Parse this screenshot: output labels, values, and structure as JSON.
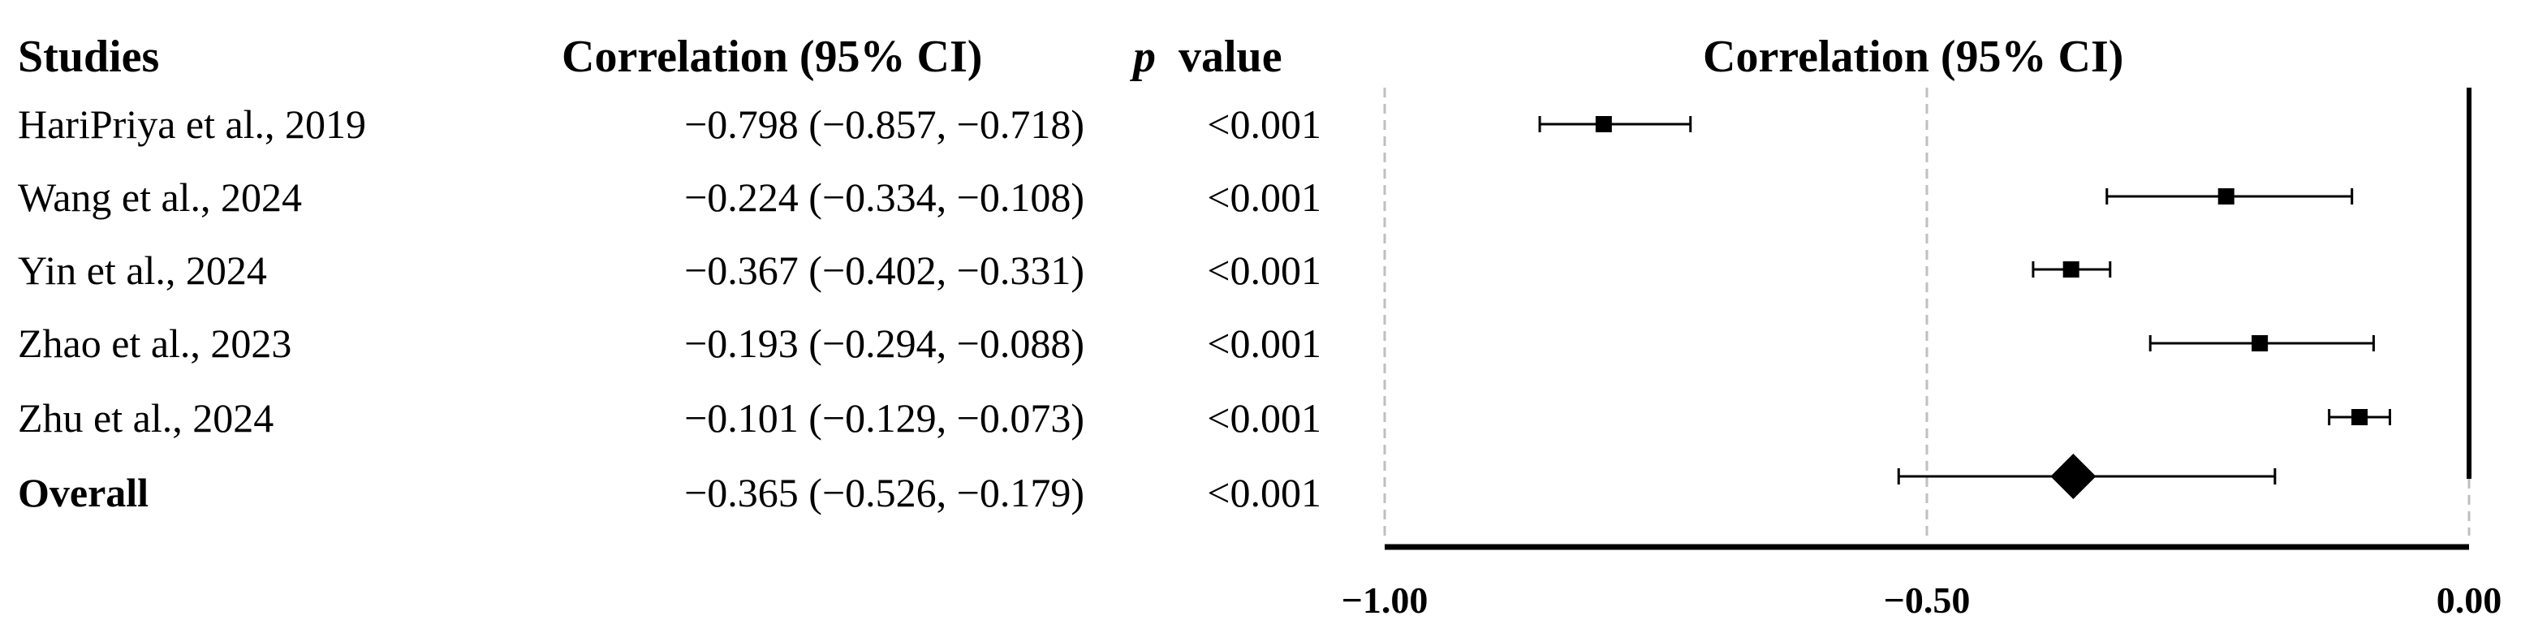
{
  "headers": {
    "studies": "Studies",
    "correlation": "Correlation (95% CI)",
    "p_italic": "p",
    "p_rest": "value",
    "plot_title": "Correlation (95% CI)"
  },
  "rows": [
    {
      "study": "HariPriya et al., 2019",
      "ci_text": "−0.798 (−0.857, −0.718)",
      "p": "<0.001"
    },
    {
      "study": "Wang et al., 2024",
      "ci_text": "−0.224 (−0.334, −0.108)",
      "p": "<0.001"
    },
    {
      "study": "Yin et al., 2024",
      "ci_text": "−0.367 (−0.402, −0.331)",
      "p": "<0.001"
    },
    {
      "study": "Zhao et al., 2023",
      "ci_text": "−0.193 (−0.294, −0.088)",
      "p": "<0.001"
    },
    {
      "study": "Zhu et al., 2024",
      "ci_text": "−0.101 (−0.129, −0.073)",
      "p": "<0.001"
    },
    {
      "study": "Overall",
      "ci_text": "−0.365 (−0.526, −0.179)",
      "p": "<0.001"
    }
  ],
  "chart_data": {
    "type": "forest",
    "title": "Correlation (95% CI)",
    "x_range": [
      -1.0,
      0.0
    ],
    "x_ticks": [
      -1.0,
      -0.5,
      0.0
    ],
    "x_tick_labels": [
      "−1.00",
      "−0.50",
      "0.00"
    ],
    "reference_line": 0.0,
    "grid": "dashed vertical",
    "studies": [
      {
        "name": "HariPriya et al., 2019",
        "estimate": -0.798,
        "lower": -0.857,
        "upper": -0.718,
        "marker": "square"
      },
      {
        "name": "Wang et al., 2024",
        "estimate": -0.224,
        "lower": -0.334,
        "upper": -0.108,
        "marker": "square"
      },
      {
        "name": "Yin et al., 2024",
        "estimate": -0.367,
        "lower": -0.402,
        "upper": -0.331,
        "marker": "square"
      },
      {
        "name": "Zhao et al., 2023",
        "estimate": -0.193,
        "lower": -0.294,
        "upper": -0.088,
        "marker": "square"
      },
      {
        "name": "Zhu et al., 2024",
        "estimate": -0.101,
        "lower": -0.129,
        "upper": -0.073,
        "marker": "square"
      }
    ],
    "overall": {
      "name": "Overall",
      "estimate": -0.365,
      "lower": -0.526,
      "upper": -0.179,
      "marker": "diamond"
    },
    "colors": {
      "marks": "#000000",
      "grid": "#bfbfbf"
    }
  }
}
